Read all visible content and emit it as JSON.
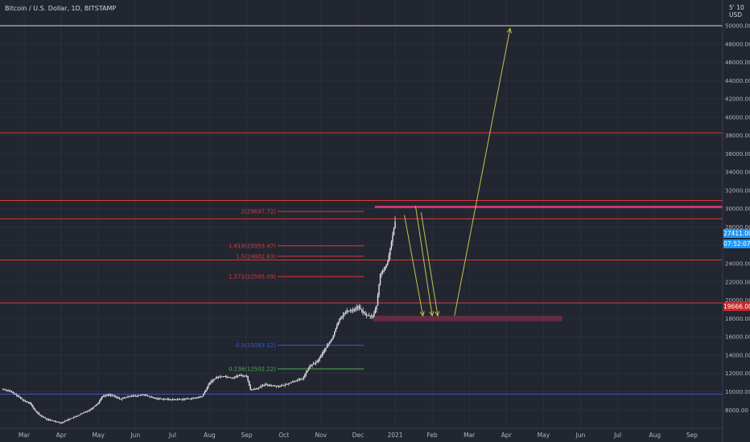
{
  "header": {
    "symbol_title": "Bitcoin / U.S. Dollar, 1D, BITSTAMP",
    "currency": "USD",
    "corner_marks": "5' 10"
  },
  "price_tags": {
    "last_price": "27411.00",
    "countdown": "07:52:07",
    "level_price": "19666.00"
  },
  "colors": {
    "background": "#222631",
    "candles": "#e6e6e6",
    "red_level": "#e23636",
    "white_level": "#d9d9d9",
    "blue_level": "#3a5bd0",
    "magenta_level": "#e8357a",
    "zone_fill": "#6e2e47",
    "arrow": "#c9c34a",
    "last_price_tag": "#2196f3",
    "level_tag": "#c62828"
  },
  "chart_data": {
    "type": "candlestick",
    "title": "Bitcoin / U.S. Dollar, 1D, BITSTAMP",
    "ylim": [
      7200,
      51600
    ],
    "y_ticks": [
      8000,
      10000,
      12000,
      14000,
      16000,
      18000,
      20000,
      22000,
      24000,
      26000,
      28000,
      30000,
      32000,
      34000,
      36000,
      38000,
      40000,
      42000,
      44000,
      46000,
      48000,
      50000
    ],
    "x_ticks": [
      {
        "label": "Mar",
        "month": 0
      },
      {
        "label": "Apr",
        "month": 1
      },
      {
        "label": "May",
        "month": 2
      },
      {
        "label": "Jun",
        "month": 3
      },
      {
        "label": "Jul",
        "month": 4
      },
      {
        "label": "Aug",
        "month": 5
      },
      {
        "label": "Sep",
        "month": 6
      },
      {
        "label": "Oct",
        "month": 7
      },
      {
        "label": "Nov",
        "month": 8
      },
      {
        "label": "Dec",
        "month": 9
      },
      {
        "label": "2021",
        "month": 10
      },
      {
        "label": "Feb",
        "month": 11
      },
      {
        "label": "Mar",
        "month": 12
      },
      {
        "label": "Apr",
        "month": 13
      },
      {
        "label": "May",
        "month": 14
      },
      {
        "label": "Jun",
        "month": 15
      },
      {
        "label": "Jul",
        "month": 16
      },
      {
        "label": "Aug",
        "month": 17
      },
      {
        "label": "Sep",
        "month": 18
      }
    ],
    "price_path": [
      [
        -0.6,
        10300
      ],
      [
        -0.4,
        10100
      ],
      [
        -0.2,
        9600
      ],
      [
        0.0,
        9000
      ],
      [
        0.15,
        8800
      ],
      [
        0.3,
        7900
      ],
      [
        0.4,
        7500
      ],
      [
        0.6,
        7000
      ],
      [
        0.8,
        6800
      ],
      [
        1.0,
        6600
      ],
      [
        1.2,
        7000
      ],
      [
        1.4,
        7300
      ],
      [
        1.6,
        7700
      ],
      [
        1.8,
        8100
      ],
      [
        2.0,
        8800
      ],
      [
        2.1,
        9500
      ],
      [
        2.3,
        9700
      ],
      [
        2.6,
        9200
      ],
      [
        2.9,
        9600
      ],
      [
        3.0,
        9500
      ],
      [
        3.2,
        9700
      ],
      [
        3.5,
        9300
      ],
      [
        3.8,
        9200
      ],
      [
        4.0,
        9150
      ],
      [
        4.3,
        9200
      ],
      [
        4.6,
        9300
      ],
      [
        4.8,
        9500
      ],
      [
        5.0,
        11000
      ],
      [
        5.2,
        11600
      ],
      [
        5.4,
        11700
      ],
      [
        5.6,
        11500
      ],
      [
        5.8,
        11800
      ],
      [
        6.0,
        11700
      ],
      [
        6.1,
        10200
      ],
      [
        6.3,
        10400
      ],
      [
        6.5,
        10800
      ],
      [
        6.8,
        10600
      ],
      [
        7.0,
        10700
      ],
      [
        7.3,
        11200
      ],
      [
        7.5,
        11400
      ],
      [
        7.7,
        12800
      ],
      [
        7.9,
        13300
      ],
      [
        8.1,
        14600
      ],
      [
        8.3,
        15800
      ],
      [
        8.5,
        18000
      ],
      [
        8.7,
        18800
      ],
      [
        8.9,
        19000
      ],
      [
        9.0,
        19300
      ],
      [
        9.2,
        18400
      ],
      [
        9.4,
        18200
      ],
      [
        9.5,
        19400
      ],
      [
        9.6,
        22900
      ],
      [
        9.7,
        23300
      ],
      [
        9.8,
        24200
      ],
      [
        9.9,
        26400
      ],
      [
        10.0,
        28600
      ]
    ],
    "horizontal_levels": [
      {
        "price": 50000,
        "style": "white"
      },
      {
        "price": 38300,
        "style": "red"
      },
      {
        "price": 30900,
        "style": "red"
      },
      {
        "price": 28900,
        "style": "red"
      },
      {
        "price": 24400,
        "style": "red"
      },
      {
        "price": 19700,
        "style": "red"
      },
      {
        "price": 9750,
        "style": "blue"
      }
    ],
    "magenta_level": {
      "price": 30200,
      "from_month": 9.45,
      "to_month": 18.5
    },
    "support_zone": {
      "from_month": 9.4,
      "to_month": 14.5,
      "top": 18300,
      "bottom": 17700
    },
    "fib_levels": [
      {
        "label": "2(29697.72)",
        "price": 29697.72,
        "color": "#e23636"
      },
      {
        "label": "1.618(25953.47)",
        "price": 25953.47,
        "color": "#e23636"
      },
      {
        "label": "1.5(24802.83)",
        "price": 24802.83,
        "color": "#e23636"
      },
      {
        "label": "1.272(22585.09)",
        "price": 22585.09,
        "color": "#e23636"
      },
      {
        "label": "0.5(15083.12)",
        "price": 15083.12,
        "color": "#3a5bd0"
      },
      {
        "label": "0.236(12502.22)",
        "price": 12502.22,
        "color": "#4caf50"
      }
    ],
    "arrows": [
      {
        "from": [
          10.25,
          29300
        ],
        "to": [
          10.75,
          18300
        ]
      },
      {
        "from": [
          10.55,
          30300
        ],
        "to": [
          11.0,
          18300
        ]
      },
      {
        "from": [
          10.7,
          29600
        ],
        "to": [
          11.15,
          18300
        ]
      },
      {
        "from": [
          11.6,
          18300
        ],
        "to": [
          13.1,
          49700
        ]
      }
    ]
  }
}
